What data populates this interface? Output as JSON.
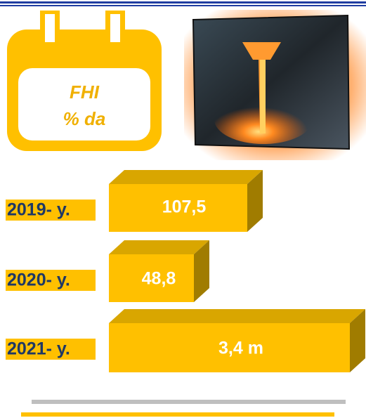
{
  "badge": {
    "line1": "FHI",
    "line2": "% da"
  },
  "items": [
    {
      "year": "2019- y.",
      "value": "107,5"
    },
    {
      "year": "2020- y.",
      "value": "48,8"
    },
    {
      "year": "2021- y.",
      "value": "3,4 m"
    }
  ]
}
